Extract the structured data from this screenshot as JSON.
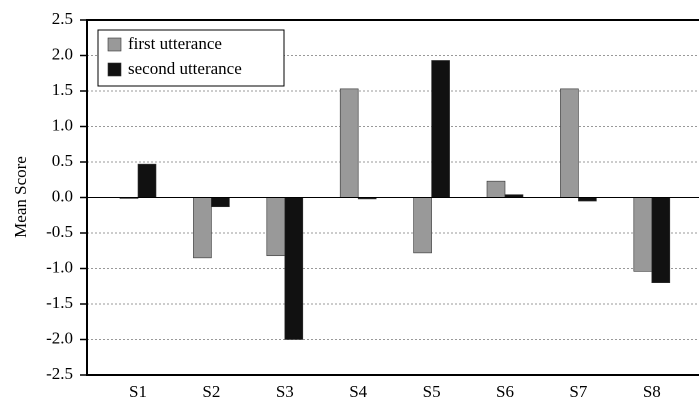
{
  "chart_data": {
    "type": "bar",
    "ylabel": "Mean Score",
    "categories": [
      "S1",
      "S2",
      "S3",
      "S4",
      "S5",
      "S6",
      "S7",
      "S8"
    ],
    "series": [
      {
        "name": "first utterance",
        "color": "#999999",
        "values": [
          -0.01,
          -0.85,
          -0.82,
          1.53,
          -0.78,
          0.23,
          1.53,
          -1.04
        ]
      },
      {
        "name": "second utterance",
        "color": "#111111",
        "values": [
          0.47,
          -0.13,
          -2.0,
          -0.02,
          1.93,
          0.04,
          -0.05,
          -1.2
        ]
      }
    ],
    "ylim": [
      -2.5,
      2.5
    ],
    "yticks": [
      2.5,
      {
        "value": 2,
        "label": "2.0"
      },
      1.5,
      {
        "value": 1,
        "label": "1.0"
      },
      0.5,
      {
        "value": 0,
        "label": "0.0"
      },
      -0.5,
      {
        "value": -1,
        "label": "-1.0"
      },
      -1.5,
      {
        "value": -2,
        "label": "-2.0"
      },
      -2.5
    ],
    "grid": true,
    "legend": "top-left"
  }
}
